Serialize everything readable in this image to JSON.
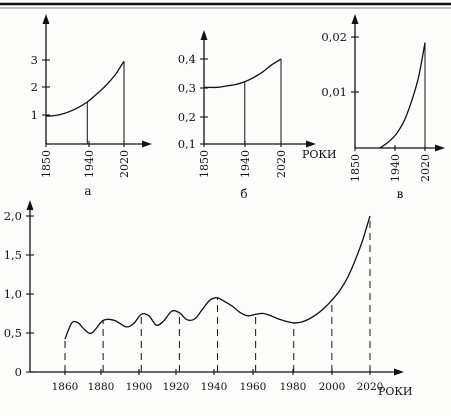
{
  "chart_data": [
    {
      "type": "line",
      "panel_label": "а",
      "xlabel": "",
      "ylabel": "",
      "xlim": [
        1850,
        2020
      ],
      "ylim": [
        0,
        3
      ],
      "x_ticks": [
        "1850",
        "1940",
        "2020"
      ],
      "y_ticks": [
        "1",
        "2",
        "3"
      ],
      "series": [
        {
          "x": [
            1850,
            1860,
            1880,
            1900,
            1920,
            1940,
            1960,
            1980,
            2000,
            2010,
            2020
          ],
          "y": [
            1.0,
            1.0,
            1.05,
            1.15,
            1.3,
            1.5,
            1.78,
            2.08,
            2.45,
            2.7,
            2.95
          ]
        }
      ],
      "markers_at": [
        1940,
        2020
      ],
      "grid": false
    },
    {
      "type": "line",
      "panel_label": "б",
      "xlabel": "РОКИ",
      "ylabel": "",
      "xlim": [
        1850,
        2020
      ],
      "ylim": [
        0.1,
        0.4
      ],
      "x_ticks": [
        "1850",
        "1940",
        "2020"
      ],
      "y_ticks": [
        "0,1",
        "0,2",
        "0,3",
        "0,4"
      ],
      "series": [
        {
          "x": [
            1850,
            1880,
            1900,
            1920,
            1940,
            1960,
            1980,
            2000,
            2020
          ],
          "y": [
            0.3,
            0.3,
            0.305,
            0.31,
            0.32,
            0.335,
            0.355,
            0.38,
            0.4
          ]
        }
      ],
      "markers_at": [
        1940,
        2020
      ],
      "grid": false
    },
    {
      "type": "line",
      "panel_label": "в",
      "xlabel": "",
      "ylabel": "",
      "xlim": [
        1850,
        2020
      ],
      "ylim": [
        0,
        0.02
      ],
      "x_ticks": [
        "1850",
        "1940",
        "2020"
      ],
      "y_ticks": [
        "0,01",
        "0,02"
      ],
      "series": [
        {
          "x": [
            1910,
            1930,
            1950,
            1970,
            1990,
            2005,
            2020
          ],
          "y": [
            0.0,
            0.001,
            0.0025,
            0.005,
            0.009,
            0.013,
            0.019
          ]
        }
      ],
      "markers_at": [
        2020
      ],
      "grid": false
    },
    {
      "type": "line",
      "panel_label": "",
      "xlabel": "РОКИ",
      "ylabel": "",
      "xlim": [
        1860,
        2020
      ],
      "ylim": [
        0,
        2.0
      ],
      "x_ticks": [
        "1860",
        "1880",
        "1900",
        "1920",
        "1940",
        "1960",
        "1980",
        "2000",
        "2020"
      ],
      "y_ticks": [
        "0",
        "0,5",
        "1,0",
        "1,5",
        "2,0"
      ],
      "series": [
        {
          "x": [
            1860,
            1862,
            1864,
            1867,
            1870,
            1874,
            1880,
            1886,
            1892,
            1896,
            1900,
            1904,
            1908,
            1912,
            1916,
            1920,
            1924,
            1928,
            1932,
            1936,
            1940,
            1944,
            1948,
            1952,
            1956,
            1960,
            1964,
            1968,
            1972,
            1976,
            1980,
            1984,
            1988,
            1992,
            1996,
            2000,
            2004,
            2008,
            2012,
            2016,
            2020
          ],
          "y": [
            0.42,
            0.55,
            0.64,
            0.63,
            0.55,
            0.5,
            0.66,
            0.66,
            0.58,
            0.62,
            0.74,
            0.72,
            0.6,
            0.66,
            0.78,
            0.76,
            0.67,
            0.68,
            0.8,
            0.92,
            0.95,
            0.9,
            0.84,
            0.76,
            0.72,
            0.74,
            0.75,
            0.72,
            0.68,
            0.65,
            0.63,
            0.64,
            0.68,
            0.74,
            0.82,
            0.92,
            1.04,
            1.2,
            1.42,
            1.68,
            2.0
          ]
        }
      ],
      "markers_at": [
        1860,
        1880,
        1900,
        1920,
        1940,
        1960,
        1980,
        2000,
        2020
      ],
      "grid": false
    }
  ]
}
